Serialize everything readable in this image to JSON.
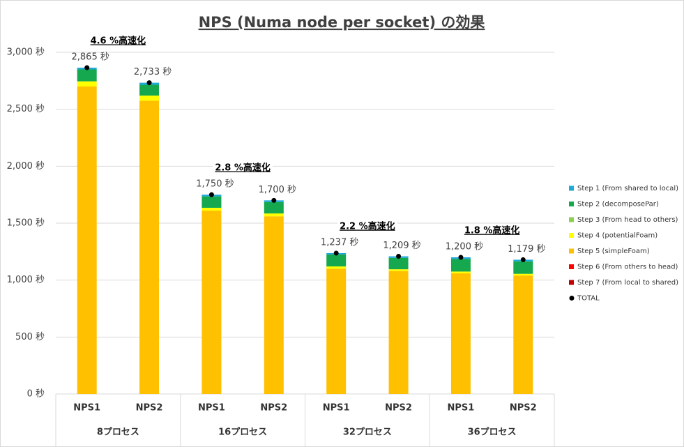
{
  "chart_data": {
    "type": "bar",
    "stacked": true,
    "title": "NPS (Numa node per socket) の効果",
    "categories": [
      "NPS1",
      "NPS2",
      "NPS1",
      "NPS2",
      "NPS1",
      "NPS2",
      "NPS1",
      "NPS2"
    ],
    "groups": [
      "8プロセス",
      "16プロセス",
      "32プロセス",
      "36プロセス"
    ],
    "annotations": [
      "4.6 %高速化",
      "2.8 %高速化",
      "2.2 %高速化",
      "1.8 %高速化"
    ],
    "series": [
      {
        "name": "Step 1 (From shared to local)",
        "color": "#1fa9d9",
        "kind": "stack",
        "values": [
          15,
          18,
          15,
          15,
          12,
          14,
          15,
          14
        ]
      },
      {
        "name": "Step 2 (decomposePar)",
        "color": "#15a84e",
        "kind": "stack",
        "values": [
          105,
          95,
          100,
          100,
          105,
          100,
          110,
          110
        ]
      },
      {
        "name": "Step 3 (From head to others)",
        "color": "#8fcf4f",
        "kind": "stack",
        "values": [
          0,
          0,
          0,
          0,
          0,
          0,
          0,
          0
        ]
      },
      {
        "name": "Step 4 (potentialFoam)",
        "color": "#ffff00",
        "kind": "stack",
        "values": [
          45,
          45,
          25,
          25,
          20,
          15,
          15,
          15
        ]
      },
      {
        "name": "Step 5 (simpleFoam)",
        "color": "#ffc000",
        "kind": "stack",
        "values": [
          2700,
          2575,
          1610,
          1560,
          1100,
          1080,
          1060,
          1040
        ]
      },
      {
        "name": "Step 6 (From others to head)",
        "color": "#ff0000",
        "kind": "stack",
        "values": [
          0,
          0,
          0,
          0,
          0,
          0,
          0,
          0
        ]
      },
      {
        "name": "Step 7 (From local to shared)",
        "color": "#c00000",
        "kind": "stack",
        "values": [
          0,
          0,
          0,
          0,
          0,
          0,
          0,
          0
        ]
      },
      {
        "name": "TOTAL",
        "color": "#000000",
        "kind": "point",
        "values": [
          2865,
          2733,
          1750,
          1700,
          1237,
          1209,
          1200,
          1179
        ],
        "value_labels": [
          "2,865 秒",
          "2,733 秒",
          "1,750 秒",
          "1,700 秒",
          "1,237 秒",
          "1,209 秒",
          "1,200 秒",
          "1,179 秒"
        ]
      }
    ],
    "ylim": [
      0,
      3000
    ],
    "yticks": [
      {
        "value": 0,
        "label": "0 秒"
      },
      {
        "value": 500,
        "label": "500 秒"
      },
      {
        "value": 1000,
        "label": "1,000 秒"
      },
      {
        "value": 1500,
        "label": "1,500 秒"
      },
      {
        "value": 2000,
        "label": "2,000 秒"
      },
      {
        "value": 2500,
        "label": "2,500 秒"
      },
      {
        "value": 3000,
        "label": "3,000 秒"
      }
    ],
    "grid": true,
    "legend": "right"
  }
}
